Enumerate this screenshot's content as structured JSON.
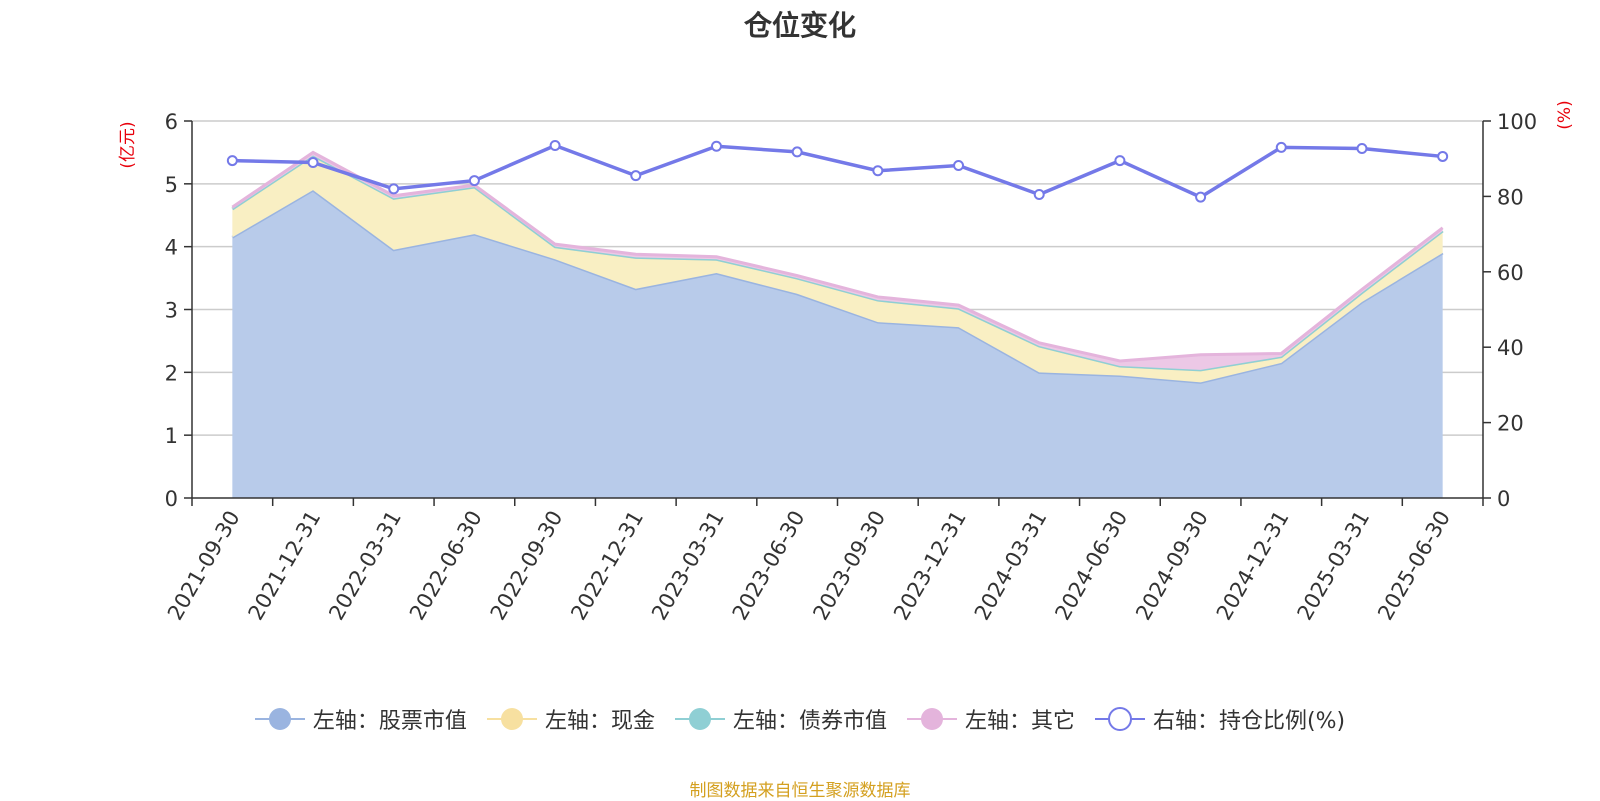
{
  "title": "仓位变化",
  "source_note": "制图数据来自恒生聚源数据库",
  "chart_data": {
    "type": "area",
    "categories": [
      "2021-09-30",
      "2021-12-31",
      "2022-03-31",
      "2022-06-30",
      "2022-09-30",
      "2022-12-31",
      "2023-03-31",
      "2023-06-30",
      "2023-09-30",
      "2023-12-31",
      "2024-03-31",
      "2024-06-30",
      "2024-09-30",
      "2024-12-31",
      "2025-03-31",
      "2025-06-30"
    ],
    "left_axis": {
      "unit": "(亿元)",
      "ylim": [
        0,
        6
      ],
      "ticks": [
        0,
        1,
        2,
        3,
        4,
        5,
        6
      ]
    },
    "right_axis": {
      "unit": "(%)",
      "ylim": [
        0,
        100
      ],
      "ticks": [
        0,
        20,
        40,
        60,
        80,
        100
      ]
    },
    "grid": true,
    "legend_position": "bottom",
    "series": [
      {
        "name": "左轴：股票市值",
        "axis": "left",
        "kind": "stacked-area",
        "color": "#9ab4e0",
        "fill": "#b8cbea",
        "values": [
          4.15,
          4.9,
          3.95,
          4.2,
          3.8,
          3.33,
          3.58,
          3.25,
          2.8,
          2.72,
          2.0,
          1.95,
          1.84,
          2.15,
          3.12,
          3.9
        ]
      },
      {
        "name": "左轴：现金",
        "axis": "left",
        "kind": "stacked-area",
        "color": "#f7e0a0",
        "fill": "#f9efc3",
        "values": [
          0.45,
          0.55,
          0.82,
          0.75,
          0.2,
          0.5,
          0.22,
          0.25,
          0.35,
          0.3,
          0.42,
          0.15,
          0.2,
          0.1,
          0.15,
          0.35
        ]
      },
      {
        "name": "左轴：债券市值",
        "axis": "left",
        "kind": "stacked-area",
        "color": "#8fcfd4",
        "fill": "#a9dbde",
        "values": [
          0,
          0,
          0,
          0,
          0,
          0,
          0,
          0,
          0,
          0,
          0,
          0,
          0,
          0,
          0,
          0
        ]
      },
      {
        "name": "左轴：其它",
        "axis": "left",
        "kind": "stacked-area",
        "color": "#e4b4dc",
        "fill": "#ecc8e6",
        "values": [
          0.03,
          0.05,
          0.04,
          0.03,
          0.04,
          0.05,
          0.04,
          0.04,
          0.05,
          0.05,
          0.05,
          0.08,
          0.24,
          0.05,
          0.05,
          0.05
        ]
      },
      {
        "name": "右轴：持仓比例(%)",
        "axis": "right",
        "kind": "line",
        "color": "#7479e8",
        "values": [
          89.5,
          89.0,
          82.0,
          84.2,
          93.5,
          85.5,
          93.3,
          91.8,
          86.8,
          88.2,
          80.5,
          89.5,
          79.8,
          93.0,
          92.7,
          90.6
        ]
      }
    ]
  }
}
